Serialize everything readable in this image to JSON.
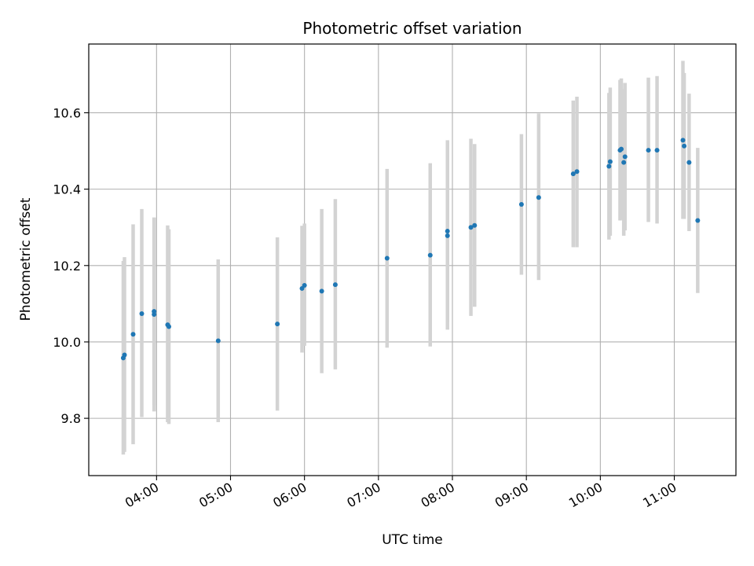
{
  "chart_data": {
    "type": "scatter",
    "title": "Photometric offset variation",
    "xlabel": "UTC time",
    "ylabel": "Photometric offset",
    "x_unit": "UTC",
    "xlim": [
      "03:05",
      "11:50"
    ],
    "ylim": [
      9.65,
      10.78
    ],
    "x_ticks": [
      "04:00",
      "05:00",
      "06:00",
      "07:00",
      "08:00",
      "09:00",
      "10:00",
      "11:00"
    ],
    "y_ticks": [
      9.8,
      10.0,
      10.2,
      10.4,
      10.6
    ],
    "grid": true,
    "point_color": "#1f77b4",
    "errorbar_color": "#d3d3d3",
    "points": [
      {
        "t": "03:33",
        "y": 9.958,
        "lo": 9.705,
        "hi": 10.212
      },
      {
        "t": "03:34",
        "y": 9.966,
        "lo": 9.712,
        "hi": 10.222
      },
      {
        "t": "03:41",
        "y": 10.02,
        "lo": 9.732,
        "hi": 10.308
      },
      {
        "t": "03:48",
        "y": 10.074,
        "lo": 9.803,
        "hi": 10.348
      },
      {
        "t": "03:58",
        "y": 10.072,
        "lo": 9.818,
        "hi": 10.326
      },
      {
        "t": "03:58",
        "y": 10.08,
        "lo": 9.835,
        "hi": 10.325
      },
      {
        "t": "04:09",
        "y": 10.045,
        "lo": 9.79,
        "hi": 10.305
      },
      {
        "t": "04:10",
        "y": 10.04,
        "lo": 9.785,
        "hi": 10.295
      },
      {
        "t": "04:50",
        "y": 10.003,
        "lo": 9.79,
        "hi": 10.216
      },
      {
        "t": "05:38",
        "y": 10.047,
        "lo": 9.82,
        "hi": 10.274
      },
      {
        "t": "05:58",
        "y": 10.14,
        "lo": 9.972,
        "hi": 10.304
      },
      {
        "t": "06:00",
        "y": 10.148,
        "lo": 9.99,
        "hi": 10.31
      },
      {
        "t": "06:14",
        "y": 10.133,
        "lo": 9.918,
        "hi": 10.348
      },
      {
        "t": "06:25",
        "y": 10.15,
        "lo": 9.928,
        "hi": 10.374
      },
      {
        "t": "07:07",
        "y": 10.219,
        "lo": 9.985,
        "hi": 10.453
      },
      {
        "t": "07:42",
        "y": 10.227,
        "lo": 9.988,
        "hi": 10.468
      },
      {
        "t": "07:56",
        "y": 10.278,
        "lo": 10.032,
        "hi": 10.524
      },
      {
        "t": "07:56",
        "y": 10.29,
        "lo": 10.052,
        "hi": 10.528
      },
      {
        "t": "08:15",
        "y": 10.3,
        "lo": 10.068,
        "hi": 10.532
      },
      {
        "t": "08:18",
        "y": 10.305,
        "lo": 10.092,
        "hi": 10.518
      },
      {
        "t": "08:56",
        "y": 10.36,
        "lo": 10.176,
        "hi": 10.544
      },
      {
        "t": "09:10",
        "y": 10.378,
        "lo": 10.162,
        "hi": 10.598
      },
      {
        "t": "09:38",
        "y": 10.44,
        "lo": 10.248,
        "hi": 10.632
      },
      {
        "t": "09:41",
        "y": 10.446,
        "lo": 10.248,
        "hi": 10.642
      },
      {
        "t": "10:07",
        "y": 10.46,
        "lo": 10.268,
        "hi": 10.652
      },
      {
        "t": "10:08",
        "y": 10.472,
        "lo": 10.278,
        "hi": 10.666
      },
      {
        "t": "10:16",
        "y": 10.502,
        "lo": 10.318,
        "hi": 10.686
      },
      {
        "t": "10:17",
        "y": 10.505,
        "lo": 10.32,
        "hi": 10.69
      },
      {
        "t": "10:19",
        "y": 10.47,
        "lo": 10.278,
        "hi": 10.662
      },
      {
        "t": "10:20",
        "y": 10.485,
        "lo": 10.292,
        "hi": 10.678
      },
      {
        "t": "10:39",
        "y": 10.502,
        "lo": 10.314,
        "hi": 10.692
      },
      {
        "t": "10:46",
        "y": 10.502,
        "lo": 10.31,
        "hi": 10.696
      },
      {
        "t": "11:07",
        "y": 10.528,
        "lo": 10.322,
        "hi": 10.736
      },
      {
        "t": "11:08",
        "y": 10.513,
        "lo": 10.322,
        "hi": 10.704
      },
      {
        "t": "11:12",
        "y": 10.47,
        "lo": 10.29,
        "hi": 10.65
      },
      {
        "t": "11:19",
        "y": 10.318,
        "lo": 10.128,
        "hi": 10.508
      }
    ]
  }
}
